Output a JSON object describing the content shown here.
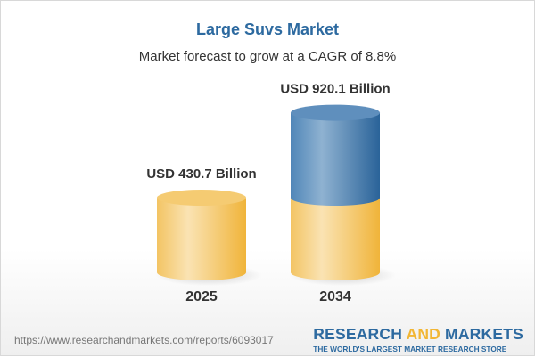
{
  "title": "Large Suvs Market",
  "subtitle": "Market forecast to grow at a CAGR of 8.8%",
  "chart_data": {
    "type": "bar",
    "style": "3d-cylinder",
    "categories": [
      "2025",
      "2034"
    ],
    "values": [
      430.7,
      920.1
    ],
    "value_labels": [
      "USD 430.7 Billion",
      "USD 920.1 Billion"
    ],
    "unit": "USD Billion",
    "colors": {
      "base": "#f2c04e",
      "growth": "#3f77aa"
    },
    "grid": false
  },
  "footer": {
    "url": "https://www.researchandmarkets.com/reports/6093017",
    "logo_part1": "RESEARCH ",
    "logo_part2": "AND",
    "logo_part3": " MARKETS",
    "logo_tagline": "THE WORLD'S LARGEST MARKET RESEARCH STORE"
  }
}
